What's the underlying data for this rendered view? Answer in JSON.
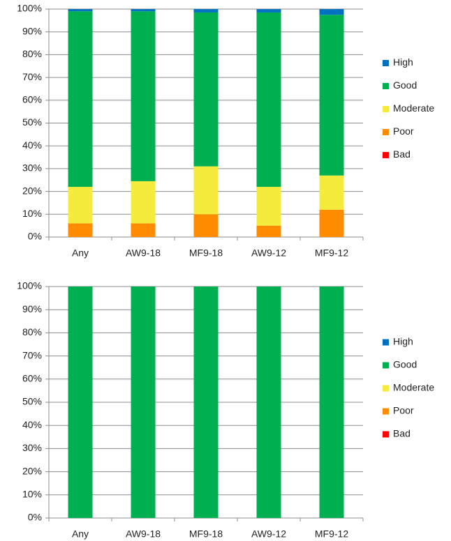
{
  "chart_data": [
    {
      "type": "stacked_bar",
      "categories": [
        "Any",
        "AW9-18",
        "MF9-18",
        "AW9-12",
        "MF9-12"
      ],
      "series": [
        {
          "name": "Bad",
          "color": "#ff0000",
          "values": [
            0,
            0,
            0,
            0,
            0
          ]
        },
        {
          "name": "Poor",
          "color": "#ff8c00",
          "values": [
            6,
            6,
            10,
            5,
            12
          ]
        },
        {
          "name": "Moderate",
          "color": "#f5eb3c",
          "values": [
            16,
            18.5,
            21,
            17,
            15
          ]
        },
        {
          "name": "Good",
          "color": "#00b050",
          "values": [
            77,
            74.5,
            67.5,
            76.5,
            70.5
          ]
        },
        {
          "name": "High",
          "color": "#0070c0",
          "values": [
            1,
            1,
            1.5,
            1.5,
            2.5
          ]
        }
      ],
      "ylim": [
        0,
        100
      ],
      "yticks": [
        {
          "value": 0,
          "label": "0%"
        },
        {
          "value": 10,
          "label": "10%"
        },
        {
          "value": 20,
          "label": "20%"
        },
        {
          "value": 30,
          "label": "30%"
        },
        {
          "value": 40,
          "label": "40%"
        },
        {
          "value": 50,
          "label": "50%"
        },
        {
          "value": 60,
          "label": "60%"
        },
        {
          "value": 70,
          "label": "70%"
        },
        {
          "value": 80,
          "label": "80%"
        },
        {
          "value": 90,
          "label": "90%"
        },
        {
          "value": 100,
          "label": "100%"
        }
      ],
      "grid": true,
      "legend": "right"
    },
    {
      "type": "stacked_bar",
      "categories": [
        "Any",
        "AW9-18",
        "MF9-18",
        "AW9-12",
        "MF9-12"
      ],
      "series": [
        {
          "name": "Bad",
          "color": "#ff0000",
          "values": [
            0,
            0,
            0,
            0,
            0
          ]
        },
        {
          "name": "Poor",
          "color": "#ff8c00",
          "values": [
            0,
            0,
            0,
            0,
            0
          ]
        },
        {
          "name": "Moderate",
          "color": "#f5eb3c",
          "values": [
            0,
            0,
            0,
            0,
            0
          ]
        },
        {
          "name": "Good",
          "color": "#00b050",
          "values": [
            100,
            100,
            100,
            100,
            100
          ]
        },
        {
          "name": "High",
          "color": "#0070c0",
          "values": [
            0,
            0,
            0,
            0,
            0
          ]
        }
      ],
      "ylim": [
        0,
        100
      ],
      "yticks": [
        {
          "value": 0,
          "label": "0%"
        },
        {
          "value": 10,
          "label": "10%"
        },
        {
          "value": 20,
          "label": "20%"
        },
        {
          "value": 30,
          "label": "30%"
        },
        {
          "value": 40,
          "label": "40%"
        },
        {
          "value": 50,
          "label": "50%"
        },
        {
          "value": 60,
          "label": "60%"
        },
        {
          "value": 70,
          "label": "70%"
        },
        {
          "value": 80,
          "label": "80%"
        },
        {
          "value": 90,
          "label": "90%"
        },
        {
          "value": 100,
          "label": "100%"
        }
      ],
      "grid": true,
      "legend": "right"
    }
  ]
}
